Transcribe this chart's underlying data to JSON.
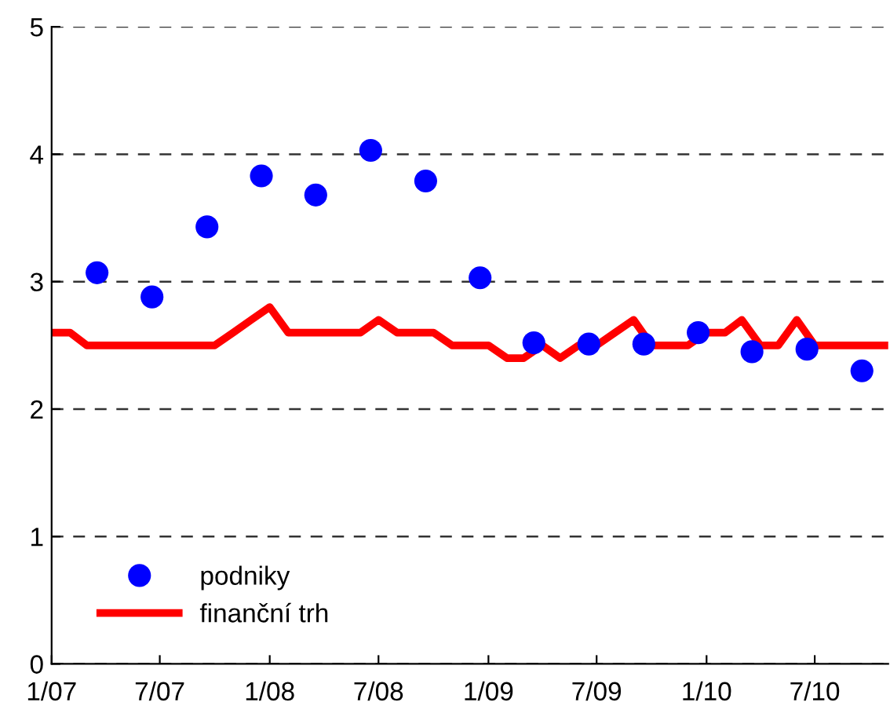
{
  "chart_data": {
    "type": "line",
    "xlim": [
      "2007-01",
      "2010-11"
    ],
    "xticks": [
      {
        "value": "2007-01",
        "label": "1/07"
      },
      {
        "value": "2007-07",
        "label": "7/07"
      },
      {
        "value": "2008-01",
        "label": "1/08"
      },
      {
        "value": "2008-07",
        "label": "7/08"
      },
      {
        "value": "2009-01",
        "label": "1/09"
      },
      {
        "value": "2009-07",
        "label": "7/09"
      },
      {
        "value": "2010-01",
        "label": "1/10"
      },
      {
        "value": "2010-07",
        "label": "7/10"
      }
    ],
    "ylim": [
      0,
      5
    ],
    "yticks": [
      0,
      1,
      2,
      3,
      4,
      5
    ],
    "grid": "y",
    "legend": "bottom left",
    "series": [
      {
        "name": "podniky",
        "type": "scatter",
        "color": "#0000ff",
        "marker": "circle",
        "x": [
          "2007-03-18",
          "2007-06-18",
          "2007-09-18",
          "2007-12-18",
          "2008-03-18",
          "2008-06-18",
          "2008-09-18",
          "2008-12-18",
          "2009-03-18",
          "2009-06-18",
          "2009-09-18",
          "2009-12-18",
          "2010-03-18",
          "2010-06-18",
          "2010-09-18"
        ],
        "values": [
          3.07,
          2.88,
          3.43,
          3.83,
          3.68,
          4.03,
          3.79,
          3.03,
          2.52,
          2.51,
          2.51,
          2.6,
          2.45,
          2.47,
          2.3
        ]
      },
      {
        "name": "finanční trh",
        "color": "#ff0000",
        "marker": "none",
        "line_style": "solid",
        "x": [
          "2007-01",
          "2007-02",
          "2007-03",
          "2007-04",
          "2007-05",
          "2007-06",
          "2007-07",
          "2007-08",
          "2007-09",
          "2007-10",
          "2007-11",
          "2007-12",
          "2008-01",
          "2008-02",
          "2008-03",
          "2008-04",
          "2008-05",
          "2008-06",
          "2008-07",
          "2008-08",
          "2008-09",
          "2008-10",
          "2008-11",
          "2008-12",
          "2009-01",
          "2009-02",
          "2009-03",
          "2009-04",
          "2009-05",
          "2009-06",
          "2009-07",
          "2009-08",
          "2009-09",
          "2009-10",
          "2009-11",
          "2009-12",
          "2010-01",
          "2010-02",
          "2010-03",
          "2010-04",
          "2010-05",
          "2010-06",
          "2010-07",
          "2010-08",
          "2010-09",
          "2010-10",
          "2010-11"
        ],
        "values": [
          2.6,
          2.6,
          2.5,
          2.5,
          2.5,
          2.5,
          2.5,
          2.5,
          2.5,
          2.5,
          2.6,
          2.7,
          2.8,
          2.6,
          2.6,
          2.6,
          2.6,
          2.6,
          2.7,
          2.6,
          2.6,
          2.6,
          2.5,
          2.5,
          2.5,
          2.4,
          2.4,
          2.5,
          2.4,
          2.5,
          2.5,
          2.6,
          2.7,
          2.5,
          2.5,
          2.5,
          2.6,
          2.6,
          2.7,
          2.5,
          2.5,
          2.7,
          2.5,
          2.5,
          2.5,
          2.5,
          2.5
        ]
      }
    ]
  }
}
